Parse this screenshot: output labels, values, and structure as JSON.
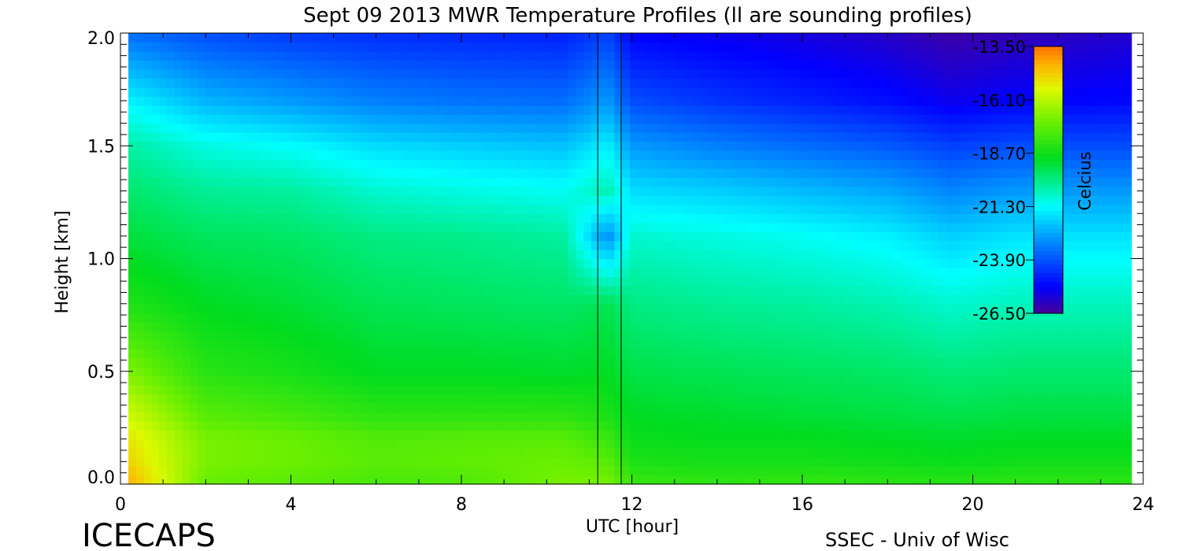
{
  "chart_data": {
    "type": "heatmap",
    "title": "Sept 09 2013 MWR Temperature Profiles (ll are sounding profiles)",
    "xlabel": "UTC [hour]",
    "ylabel": "Height [km]",
    "xlim": [
      0,
      24
    ],
    "ylim": [
      0,
      2.0
    ],
    "x_ticks": [
      "0",
      "4",
      "8",
      "12",
      "16",
      "20",
      "24"
    ],
    "y_ticks": [
      "0.0",
      "0.5",
      "1.0",
      "1.5",
      "2.0"
    ],
    "colorbar": {
      "label": "Celcius",
      "ticks": [
        "-13.50",
        "-16.10",
        "-18.70",
        "-21.30",
        "-23.90",
        "-26.50"
      ],
      "range": [
        -26.5,
        -13.5
      ]
    },
    "sounding_markers_hours": [
      11.2,
      11.75
    ],
    "heights_km": [
      0.0,
      0.1,
      0.2,
      0.3,
      0.5,
      0.8,
      1.1,
      1.3,
      1.5,
      1.7,
      2.0
    ],
    "series": [
      {
        "hour": 0.3,
        "values": [
          -14.5,
          -15.0,
          -15.3,
          -15.8,
          -17.0,
          -18.5,
          -19.3,
          -19.8,
          -20.4,
          -21.5,
          -23.5
        ]
      },
      {
        "hour": 2.0,
        "values": [
          -17.3,
          -17.0,
          -17.0,
          -17.5,
          -18.3,
          -19.0,
          -19.6,
          -20.2,
          -21.0,
          -22.4,
          -24.0
        ]
      },
      {
        "hour": 4.0,
        "values": [
          -17.5,
          -17.2,
          -17.2,
          -17.8,
          -18.6,
          -19.2,
          -19.7,
          -20.3,
          -21.3,
          -22.8,
          -24.3
        ]
      },
      {
        "hour": 6.0,
        "values": [
          -17.8,
          -17.5,
          -17.6,
          -18.2,
          -19.0,
          -19.5,
          -20.0,
          -20.8,
          -21.8,
          -23.2,
          -24.5
        ]
      },
      {
        "hour": 8.0,
        "values": [
          -17.7,
          -17.4,
          -17.5,
          -18.2,
          -19.0,
          -19.6,
          -20.1,
          -21.0,
          -22.0,
          -23.4,
          -24.6
        ]
      },
      {
        "hour": 10.4,
        "values": [
          -17.0,
          -17.2,
          -17.5,
          -18.2,
          -19.1,
          -19.7,
          -20.3,
          -21.2,
          -22.2,
          -23.5,
          -24.7
        ]
      },
      {
        "hour": 11.45,
        "values": [
          -17.0,
          -17.5,
          -18.0,
          -18.5,
          -19.0,
          -19.5,
          -23.0,
          -20.5,
          -21.5,
          -22.8,
          -24.2
        ]
      },
      {
        "hour": 12.0,
        "values": [
          -18.0,
          -18.5,
          -18.8,
          -19.0,
          -19.4,
          -20.0,
          -20.8,
          -21.8,
          -22.8,
          -24.0,
          -25.2
        ]
      },
      {
        "hour": 14.0,
        "values": [
          -18.2,
          -18.6,
          -18.9,
          -19.1,
          -19.5,
          -20.2,
          -21.0,
          -22.0,
          -23.2,
          -24.4,
          -25.4
        ]
      },
      {
        "hour": 16.0,
        "values": [
          -18.1,
          -18.6,
          -18.9,
          -19.2,
          -19.6,
          -20.3,
          -21.2,
          -22.3,
          -23.5,
          -24.7,
          -25.6
        ]
      },
      {
        "hour": 18.0,
        "values": [
          -18.2,
          -18.7,
          -19.0,
          -19.3,
          -19.7,
          -20.5,
          -21.5,
          -22.6,
          -23.8,
          -25.0,
          -25.9
        ]
      },
      {
        "hour": 19.5,
        "values": [
          -18.3,
          -18.8,
          -19.1,
          -19.4,
          -19.9,
          -20.8,
          -22.0,
          -23.1,
          -24.2,
          -25.4,
          -26.3
        ]
      },
      {
        "hour": 21.0,
        "values": [
          -18.2,
          -18.7,
          -19.0,
          -19.3,
          -19.8,
          -20.6,
          -21.7,
          -22.8,
          -24.0,
          -25.2,
          -26.1
        ]
      },
      {
        "hour": 23.6,
        "values": [
          -18.2,
          -18.7,
          -19.0,
          -19.3,
          -19.8,
          -20.6,
          -21.7,
          -22.8,
          -24.0,
          -25.1,
          -25.8
        ]
      }
    ]
  },
  "branding": {
    "left": "ICECAPS",
    "right": "SSEC - Univ of Wisc"
  }
}
